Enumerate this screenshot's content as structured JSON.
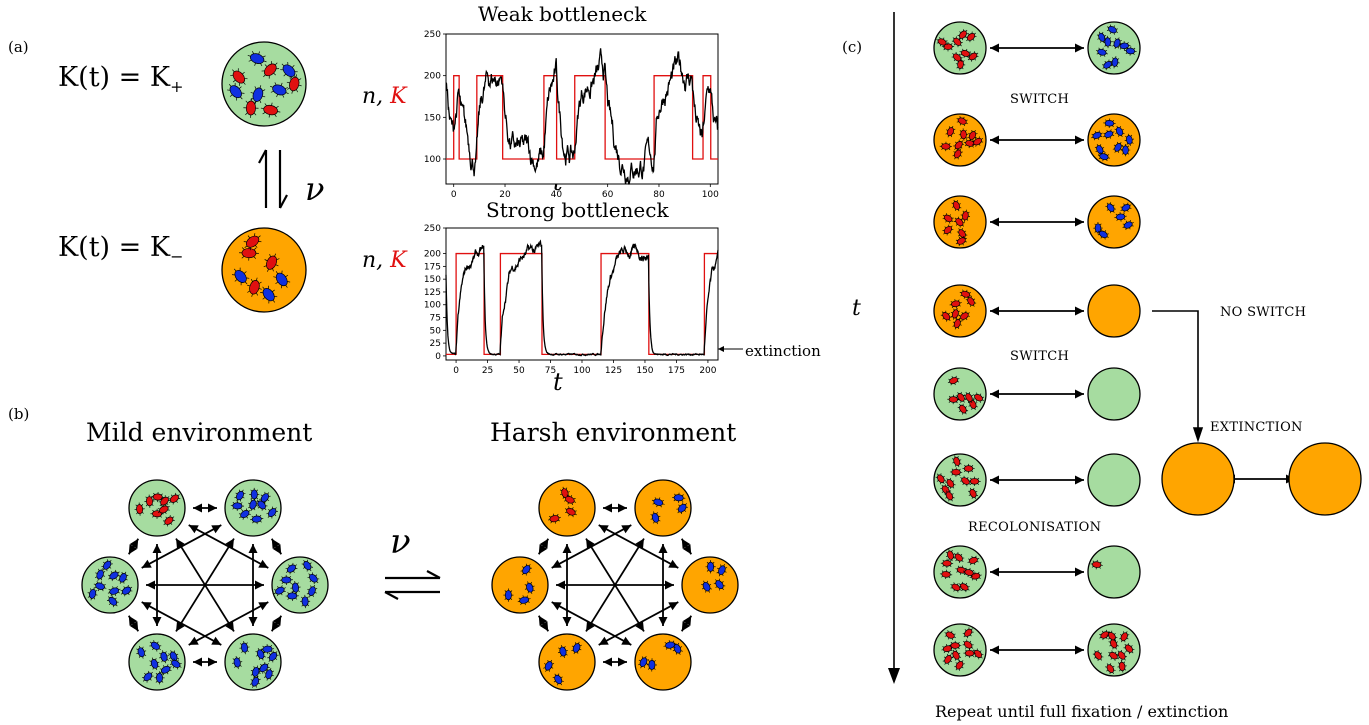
{
  "panel_labels": {
    "a": "(a)",
    "b": "(b)",
    "c": "(c)"
  },
  "panel_a": {
    "eq_top": {
      "lhs": "K(t) = K",
      "sub": "+"
    },
    "eq_bottom": {
      "lhs": "K(t) = K",
      "sub": "−"
    },
    "rate": "ν",
    "axis_label_n": "n,",
    "axis_label_K": "K",
    "plot_weak": {
      "title": "Weak bottleneck",
      "xlabel": "t",
      "xticks": [
        "0",
        "20",
        "40",
        "60",
        "80",
        "100"
      ],
      "yticks": [
        "100",
        "150",
        "200",
        "250"
      ]
    },
    "plot_strong": {
      "title": "Strong bottleneck",
      "xlabel": "t",
      "xticks": [
        "0",
        "25",
        "50",
        "75",
        "100",
        "125",
        "150",
        "175",
        "200"
      ],
      "yticks": [
        "0",
        "25",
        "50",
        "75",
        "100",
        "125",
        "150",
        "175",
        "200",
        "250"
      ],
      "annotation": "extinction"
    }
  },
  "panel_b": {
    "mild_title": "Mild environment",
    "harsh_title": "Harsh environment",
    "rate": "ν"
  },
  "panel_c": {
    "time_label": "t",
    "switch_1": "SWITCH",
    "switch_2": "SWITCH",
    "no_switch": "NO SWITCH",
    "extinction": "EXTINCTION",
    "recolonisation": "RECOLONISATION",
    "footer": "Repeat until full fixation / extinction"
  },
  "colors": {
    "mild": "#a6dca0",
    "harsh": "#ffa500",
    "red_cell": "#e01010",
    "blue_cell": "#1030e0",
    "carrying_capacity_line": "#e01010"
  }
}
